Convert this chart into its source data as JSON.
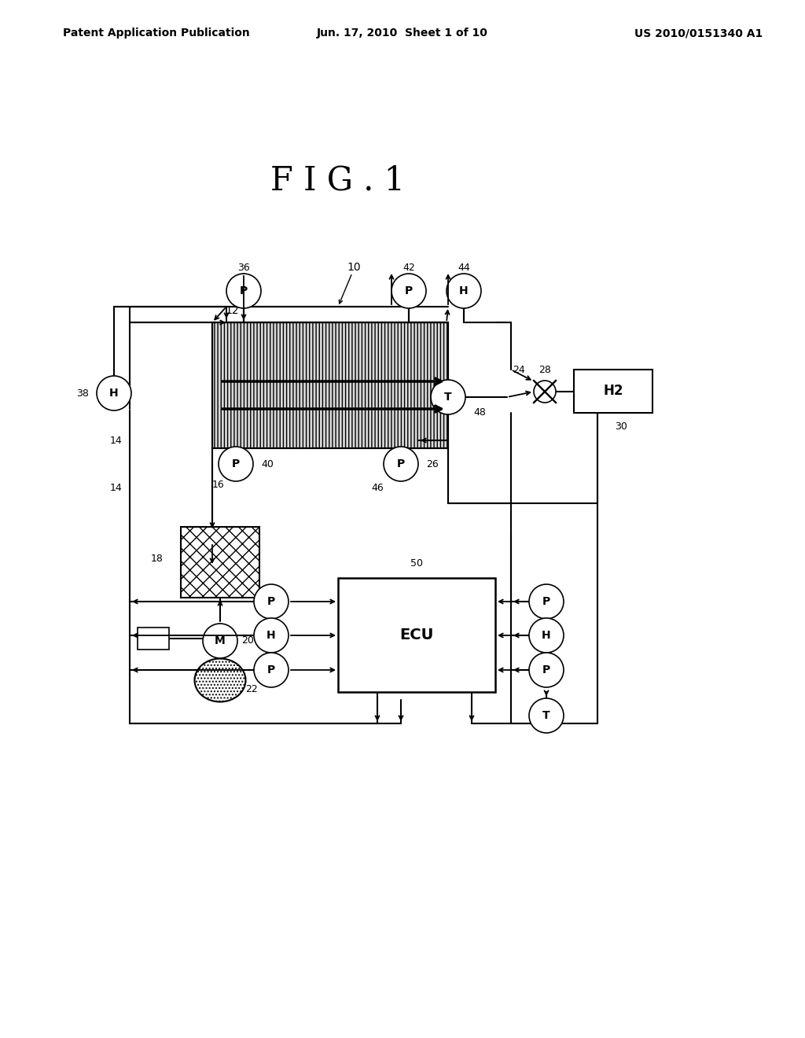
{
  "bg_color": "#ffffff",
  "header_left": "Patent Application Publication",
  "header_center": "Jun. 17, 2010  Sheet 1 of 10",
  "header_right": "US 2010/0151340 A1",
  "fig_title": "F I G . 1"
}
